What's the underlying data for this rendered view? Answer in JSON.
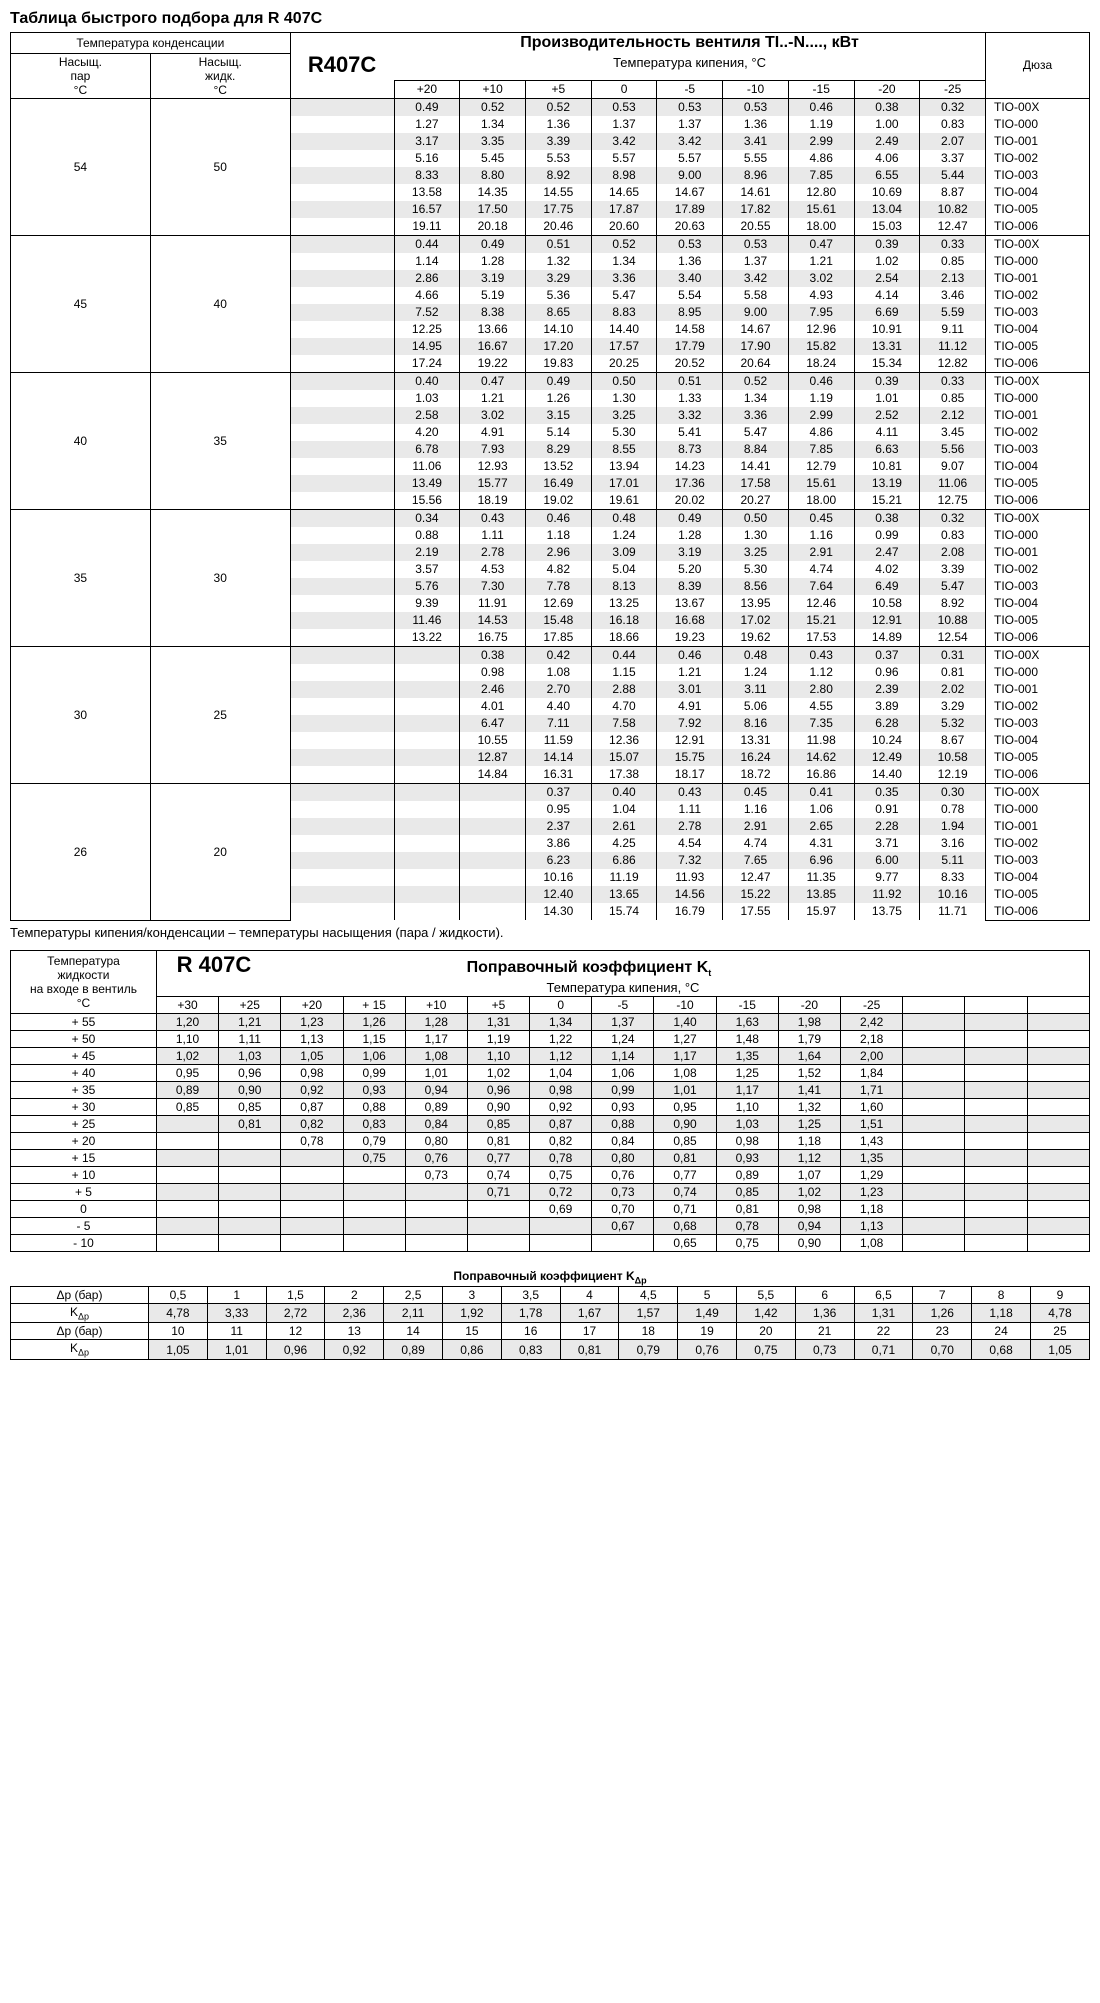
{
  "title": "Таблица быстрого подбора для R 407C",
  "refrigerant": "R407C",
  "main_header": "Производительность вентиля TI..-N...., кВт",
  "sub_header": "Температура кипения, °C",
  "cond_header": "Температура конденсации",
  "vapor_label": "Насыщ.\nпар\n°C",
  "liquid_label": "Насыщ.\nжидк.\n°C",
  "nozzle_label": "Дюза",
  "temp_cols": [
    "+20",
    "+10",
    "+5",
    "0",
    "-5",
    "-10",
    "-15",
    "-20",
    "-25"
  ],
  "nozzles": [
    "TIO-00X",
    "TIO-000",
    "TIO-001",
    "TIO-002",
    "TIO-003",
    "TIO-004",
    "TIO-005",
    "TIO-006"
  ],
  "footnote": "Температуры кипения/конденсации – температуры насыщения (пара / жидкости).",
  "blocks": [
    {
      "vapor": "54",
      "liquid": "50",
      "rows": [
        [
          "0.49",
          "0.52",
          "0.52",
          "0.53",
          "0.53",
          "0.53",
          "0.46",
          "0.38",
          "0.32"
        ],
        [
          "1.27",
          "1.34",
          "1.36",
          "1.37",
          "1.37",
          "1.36",
          "1.19",
          "1.00",
          "0.83"
        ],
        [
          "3.17",
          "3.35",
          "3.39",
          "3.42",
          "3.42",
          "3.41",
          "2.99",
          "2.49",
          "2.07"
        ],
        [
          "5.16",
          "5.45",
          "5.53",
          "5.57",
          "5.57",
          "5.55",
          "4.86",
          "4.06",
          "3.37"
        ],
        [
          "8.33",
          "8.80",
          "8.92",
          "8.98",
          "9.00",
          "8.96",
          "7.85",
          "6.55",
          "5.44"
        ],
        [
          "13.58",
          "14.35",
          "14.55",
          "14.65",
          "14.67",
          "14.61",
          "12.80",
          "10.69",
          "8.87"
        ],
        [
          "16.57",
          "17.50",
          "17.75",
          "17.87",
          "17.89",
          "17.82",
          "15.61",
          "13.04",
          "10.82"
        ],
        [
          "19.11",
          "20.18",
          "20.46",
          "20.60",
          "20.63",
          "20.55",
          "18.00",
          "15.03",
          "12.47"
        ]
      ]
    },
    {
      "vapor": "45",
      "liquid": "40",
      "rows": [
        [
          "0.44",
          "0.49",
          "0.51",
          "0.52",
          "0.53",
          "0.53",
          "0.47",
          "0.39",
          "0.33"
        ],
        [
          "1.14",
          "1.28",
          "1.32",
          "1.34",
          "1.36",
          "1.37",
          "1.21",
          "1.02",
          "0.85"
        ],
        [
          "2.86",
          "3.19",
          "3.29",
          "3.36",
          "3.40",
          "3.42",
          "3.02",
          "2.54",
          "2.13"
        ],
        [
          "4.66",
          "5.19",
          "5.36",
          "5.47",
          "5.54",
          "5.58",
          "4.93",
          "4.14",
          "3.46"
        ],
        [
          "7.52",
          "8.38",
          "8.65",
          "8.83",
          "8.95",
          "9.00",
          "7.95",
          "6.69",
          "5.59"
        ],
        [
          "12.25",
          "13.66",
          "14.10",
          "14.40",
          "14.58",
          "14.67",
          "12.96",
          "10.91",
          "9.11"
        ],
        [
          "14.95",
          "16.67",
          "17.20",
          "17.57",
          "17.79",
          "17.90",
          "15.82",
          "13.31",
          "11.12"
        ],
        [
          "17.24",
          "19.22",
          "19.83",
          "20.25",
          "20.52",
          "20.64",
          "18.24",
          "15.34",
          "12.82"
        ]
      ]
    },
    {
      "vapor": "40",
      "liquid": "35",
      "rows": [
        [
          "0.40",
          "0.47",
          "0.49",
          "0.50",
          "0.51",
          "0.52",
          "0.46",
          "0.39",
          "0.33"
        ],
        [
          "1.03",
          "1.21",
          "1.26",
          "1.30",
          "1.33",
          "1.34",
          "1.19",
          "1.01",
          "0.85"
        ],
        [
          "2.58",
          "3.02",
          "3.15",
          "3.25",
          "3.32",
          "3.36",
          "2.99",
          "2.52",
          "2.12"
        ],
        [
          "4.20",
          "4.91",
          "5.14",
          "5.30",
          "5.41",
          "5.47",
          "4.86",
          "4.11",
          "3.45"
        ],
        [
          "6.78",
          "7.93",
          "8.29",
          "8.55",
          "8.73",
          "8.84",
          "7.85",
          "6.63",
          "5.56"
        ],
        [
          "11.06",
          "12.93",
          "13.52",
          "13.94",
          "14.23",
          "14.41",
          "12.79",
          "10.81",
          "9.07"
        ],
        [
          "13.49",
          "15.77",
          "16.49",
          "17.01",
          "17.36",
          "17.58",
          "15.61",
          "13.19",
          "11.06"
        ],
        [
          "15.56",
          "18.19",
          "19.02",
          "19.61",
          "20.02",
          "20.27",
          "18.00",
          "15.21",
          "12.75"
        ]
      ]
    },
    {
      "vapor": "35",
      "liquid": "30",
      "rows": [
        [
          "0.34",
          "0.43",
          "0.46",
          "0.48",
          "0.49",
          "0.50",
          "0.45",
          "0.38",
          "0.32"
        ],
        [
          "0.88",
          "1.11",
          "1.18",
          "1.24",
          "1.28",
          "1.30",
          "1.16",
          "0.99",
          "0.83"
        ],
        [
          "2.19",
          "2.78",
          "2.96",
          "3.09",
          "3.19",
          "3.25",
          "2.91",
          "2.47",
          "2.08"
        ],
        [
          "3.57",
          "4.53",
          "4.82",
          "5.04",
          "5.20",
          "5.30",
          "4.74",
          "4.02",
          "3.39"
        ],
        [
          "5.76",
          "7.30",
          "7.78",
          "8.13",
          "8.39",
          "8.56",
          "7.64",
          "6.49",
          "5.47"
        ],
        [
          "9.39",
          "11.91",
          "12.69",
          "13.25",
          "13.67",
          "13.95",
          "12.46",
          "10.58",
          "8.92"
        ],
        [
          "11.46",
          "14.53",
          "15.48",
          "16.18",
          "16.68",
          "17.02",
          "15.21",
          "12.91",
          "10.88"
        ],
        [
          "13.22",
          "16.75",
          "17.85",
          "18.66",
          "19.23",
          "19.62",
          "17.53",
          "14.89",
          "12.54"
        ]
      ]
    },
    {
      "vapor": "30",
      "liquid": "25",
      "rows": [
        [
          "",
          "0.38",
          "0.42",
          "0.44",
          "0.46",
          "0.48",
          "0.43",
          "0.37",
          "0.31"
        ],
        [
          "",
          "0.98",
          "1.08",
          "1.15",
          "1.21",
          "1.24",
          "1.12",
          "0.96",
          "0.81"
        ],
        [
          "",
          "2.46",
          "2.70",
          "2.88",
          "3.01",
          "3.11",
          "2.80",
          "2.39",
          "2.02"
        ],
        [
          "",
          "4.01",
          "4.40",
          "4.70",
          "4.91",
          "5.06",
          "4.55",
          "3.89",
          "3.29"
        ],
        [
          "",
          "6.47",
          "7.11",
          "7.58",
          "7.92",
          "8.16",
          "7.35",
          "6.28",
          "5.32"
        ],
        [
          "",
          "10.55",
          "11.59",
          "12.36",
          "12.91",
          "13.31",
          "11.98",
          "10.24",
          "8.67"
        ],
        [
          "",
          "12.87",
          "14.14",
          "15.07",
          "15.75",
          "16.24",
          "14.62",
          "12.49",
          "10.58"
        ],
        [
          "",
          "14.84",
          "16.31",
          "17.38",
          "18.17",
          "18.72",
          "16.86",
          "14.40",
          "12.19"
        ]
      ]
    },
    {
      "vapor": "26",
      "liquid": "20",
      "rows": [
        [
          "",
          "",
          "0.37",
          "0.40",
          "0.43",
          "0.45",
          "0.41",
          "0.35",
          "0.30"
        ],
        [
          "",
          "",
          "0.95",
          "1.04",
          "1.11",
          "1.16",
          "1.06",
          "0.91",
          "0.78"
        ],
        [
          "",
          "",
          "2.37",
          "2.61",
          "2.78",
          "2.91",
          "2.65",
          "2.28",
          "1.94"
        ],
        [
          "",
          "",
          "3.86",
          "4.25",
          "4.54",
          "4.74",
          "4.31",
          "3.71",
          "3.16"
        ],
        [
          "",
          "",
          "6.23",
          "6.86",
          "7.32",
          "7.65",
          "6.96",
          "6.00",
          "5.11"
        ],
        [
          "",
          "",
          "10.16",
          "11.19",
          "11.93",
          "12.47",
          "11.35",
          "9.77",
          "8.33"
        ],
        [
          "",
          "",
          "12.40",
          "13.65",
          "14.56",
          "15.22",
          "13.85",
          "11.92",
          "10.16"
        ],
        [
          "",
          "",
          "14.30",
          "15.74",
          "16.79",
          "17.55",
          "15.97",
          "13.75",
          "11.71"
        ]
      ]
    }
  ],
  "kt": {
    "title_label": "Температура\nжидкости\nна входе в вентиль\n°C",
    "refrigerant": "R 407C",
    "header": "Поправочный коэффициент K",
    "sub": "t",
    "subheader": "Температура кипения, °C",
    "cols": [
      "+30",
      "+25",
      "+20",
      "+ 15",
      "+10",
      "+5",
      "0",
      "-5",
      "-10",
      "-15",
      "-20",
      "-25",
      "",
      "",
      ""
    ],
    "rows": [
      {
        "l": "+ 55",
        "v": [
          "1,20",
          "1,21",
          "1,23",
          "1,26",
          "1,28",
          "1,31",
          "1,34",
          "1,37",
          "1,40",
          "1,63",
          "1,98",
          "2,42",
          "",
          "",
          ""
        ]
      },
      {
        "l": "+ 50",
        "v": [
          "1,10",
          "1,11",
          "1,13",
          "1,15",
          "1,17",
          "1,19",
          "1,22",
          "1,24",
          "1,27",
          "1,48",
          "1,79",
          "2,18",
          "",
          "",
          ""
        ]
      },
      {
        "l": "+ 45",
        "v": [
          "1,02",
          "1,03",
          "1,05",
          "1,06",
          "1,08",
          "1,10",
          "1,12",
          "1,14",
          "1,17",
          "1,35",
          "1,64",
          "2,00",
          "",
          "",
          ""
        ]
      },
      {
        "l": "+ 40",
        "v": [
          "0,95",
          "0,96",
          "0,98",
          "0,99",
          "1,01",
          "1,02",
          "1,04",
          "1,06",
          "1,08",
          "1,25",
          "1,52",
          "1,84",
          "",
          "",
          ""
        ]
      },
      {
        "l": "+ 35",
        "v": [
          "0,89",
          "0,90",
          "0,92",
          "0,93",
          "0,94",
          "0,96",
          "0,98",
          "0,99",
          "1,01",
          "1,17",
          "1,41",
          "1,71",
          "",
          "",
          ""
        ]
      },
      {
        "l": "+ 30",
        "v": [
          "0,85",
          "0,85",
          "0,87",
          "0,88",
          "0,89",
          "0,90",
          "0,92",
          "0,93",
          "0,95",
          "1,10",
          "1,32",
          "1,60",
          "",
          "",
          ""
        ]
      },
      {
        "l": "+ 25",
        "v": [
          "",
          "0,81",
          "0,82",
          "0,83",
          "0,84",
          "0,85",
          "0,87",
          "0,88",
          "0,90",
          "1,03",
          "1,25",
          "1,51",
          "",
          "",
          ""
        ]
      },
      {
        "l": "+ 20",
        "v": [
          "",
          "",
          "0,78",
          "0,79",
          "0,80",
          "0,81",
          "0,82",
          "0,84",
          "0,85",
          "0,98",
          "1,18",
          "1,43",
          "",
          "",
          ""
        ]
      },
      {
        "l": "+ 15",
        "v": [
          "",
          "",
          "",
          "0,75",
          "0,76",
          "0,77",
          "0,78",
          "0,80",
          "0,81",
          "0,93",
          "1,12",
          "1,35",
          "",
          "",
          ""
        ]
      },
      {
        "l": "+ 10",
        "v": [
          "",
          "",
          "",
          "",
          "0,73",
          "0,74",
          "0,75",
          "0,76",
          "0,77",
          "0,89",
          "1,07",
          "1,29",
          "",
          "",
          ""
        ]
      },
      {
        "l": "+ 5",
        "v": [
          "",
          "",
          "",
          "",
          "",
          "0,71",
          "0,72",
          "0,73",
          "0,74",
          "0,85",
          "1,02",
          "1,23",
          "",
          "",
          ""
        ]
      },
      {
        "l": "0",
        "v": [
          "",
          "",
          "",
          "",
          "",
          "",
          "0,69",
          "0,70",
          "0,71",
          "0,81",
          "0,98",
          "1,18",
          "",
          "",
          ""
        ]
      },
      {
        "l": "- 5",
        "v": [
          "",
          "",
          "",
          "",
          "",
          "",
          "",
          "0,67",
          "0,68",
          "0,78",
          "0,94",
          "1,13",
          "",
          "",
          ""
        ]
      },
      {
        "l": "- 10",
        "v": [
          "",
          "",
          "",
          "",
          "",
          "",
          "",
          "",
          "0,65",
          "0,75",
          "0,90",
          "1,08",
          "",
          "",
          ""
        ]
      }
    ]
  },
  "kdp": {
    "header": "Поправочный коэффициент K",
    "sub": "Δp",
    "dp_label": "Δp (бар)",
    "k_label": "K",
    "k_sub": "Δp",
    "rows": [
      {
        "dp": [
          "0,5",
          "1",
          "1,5",
          "2",
          "2,5",
          "3",
          "3,5",
          "4",
          "4,5",
          "5",
          "5,5",
          "6",
          "6,5",
          "7",
          "8",
          "9"
        ],
        "k": [
          "4,78",
          "3,33",
          "2,72",
          "2,36",
          "2,11",
          "1,92",
          "1,78",
          "1,67",
          "1,57",
          "1,49",
          "1,42",
          "1,36",
          "1,31",
          "1,26",
          "1,18",
          "4,78"
        ]
      },
      {
        "dp": [
          "10",
          "11",
          "12",
          "13",
          "14",
          "15",
          "16",
          "17",
          "18",
          "19",
          "20",
          "21",
          "22",
          "23",
          "24",
          "25"
        ],
        "k": [
          "1,05",
          "1,01",
          "0,96",
          "0,92",
          "0,89",
          "0,86",
          "0,83",
          "0,81",
          "0,79",
          "0,76",
          "0,75",
          "0,73",
          "0,71",
          "0,70",
          "0,68",
          "1,05"
        ]
      }
    ]
  },
  "colors": {
    "stripe": "#e9e9e9",
    "border": "#000000",
    "bg": "#ffffff"
  }
}
